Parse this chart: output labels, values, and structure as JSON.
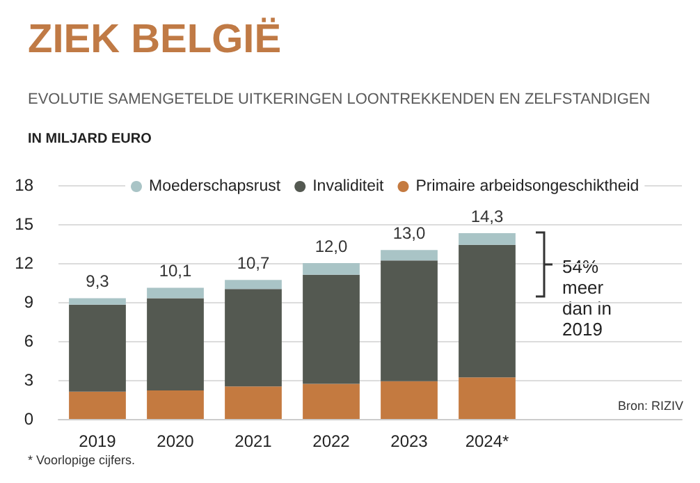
{
  "chart_data": {
    "type": "bar",
    "stacked": true,
    "title": "ZIEK BELGIË",
    "subtitle": "EVOLUTIE SAMENGETELDE UITKERINGEN LOONTREKKENDEN EN ZELFSTANDIGEN",
    "ylabel": "IN MILJARD EURO",
    "categories": [
      "2019",
      "2020",
      "2021",
      "2022",
      "2023",
      "2024*"
    ],
    "series": [
      {
        "name": "Primaire arbeidsongeschiktheid",
        "color": "#c47a40",
        "values": [
          2.1,
          2.2,
          2.5,
          2.7,
          2.9,
          3.2
        ]
      },
      {
        "name": "Invaliditeit",
        "color": "#545951",
        "values": [
          6.7,
          7.1,
          7.5,
          8.4,
          9.3,
          10.2
        ]
      },
      {
        "name": "Moederschapsrust",
        "color": "#a9c4c6",
        "values": [
          0.5,
          0.8,
          0.7,
          0.9,
          0.8,
          0.9
        ]
      }
    ],
    "totals": [
      "9,3",
      "10,1",
      "10,7",
      "12,0",
      "13,0",
      "14,3"
    ],
    "ylim": [
      0,
      18
    ],
    "yticks": [
      0,
      3,
      6,
      9,
      12,
      15,
      18
    ],
    "grid": "y",
    "legend": "top",
    "annotations": [
      "54% meer dan in 2019",
      "Bron: RIZIV",
      "* Voorlopige cijfers."
    ]
  }
}
